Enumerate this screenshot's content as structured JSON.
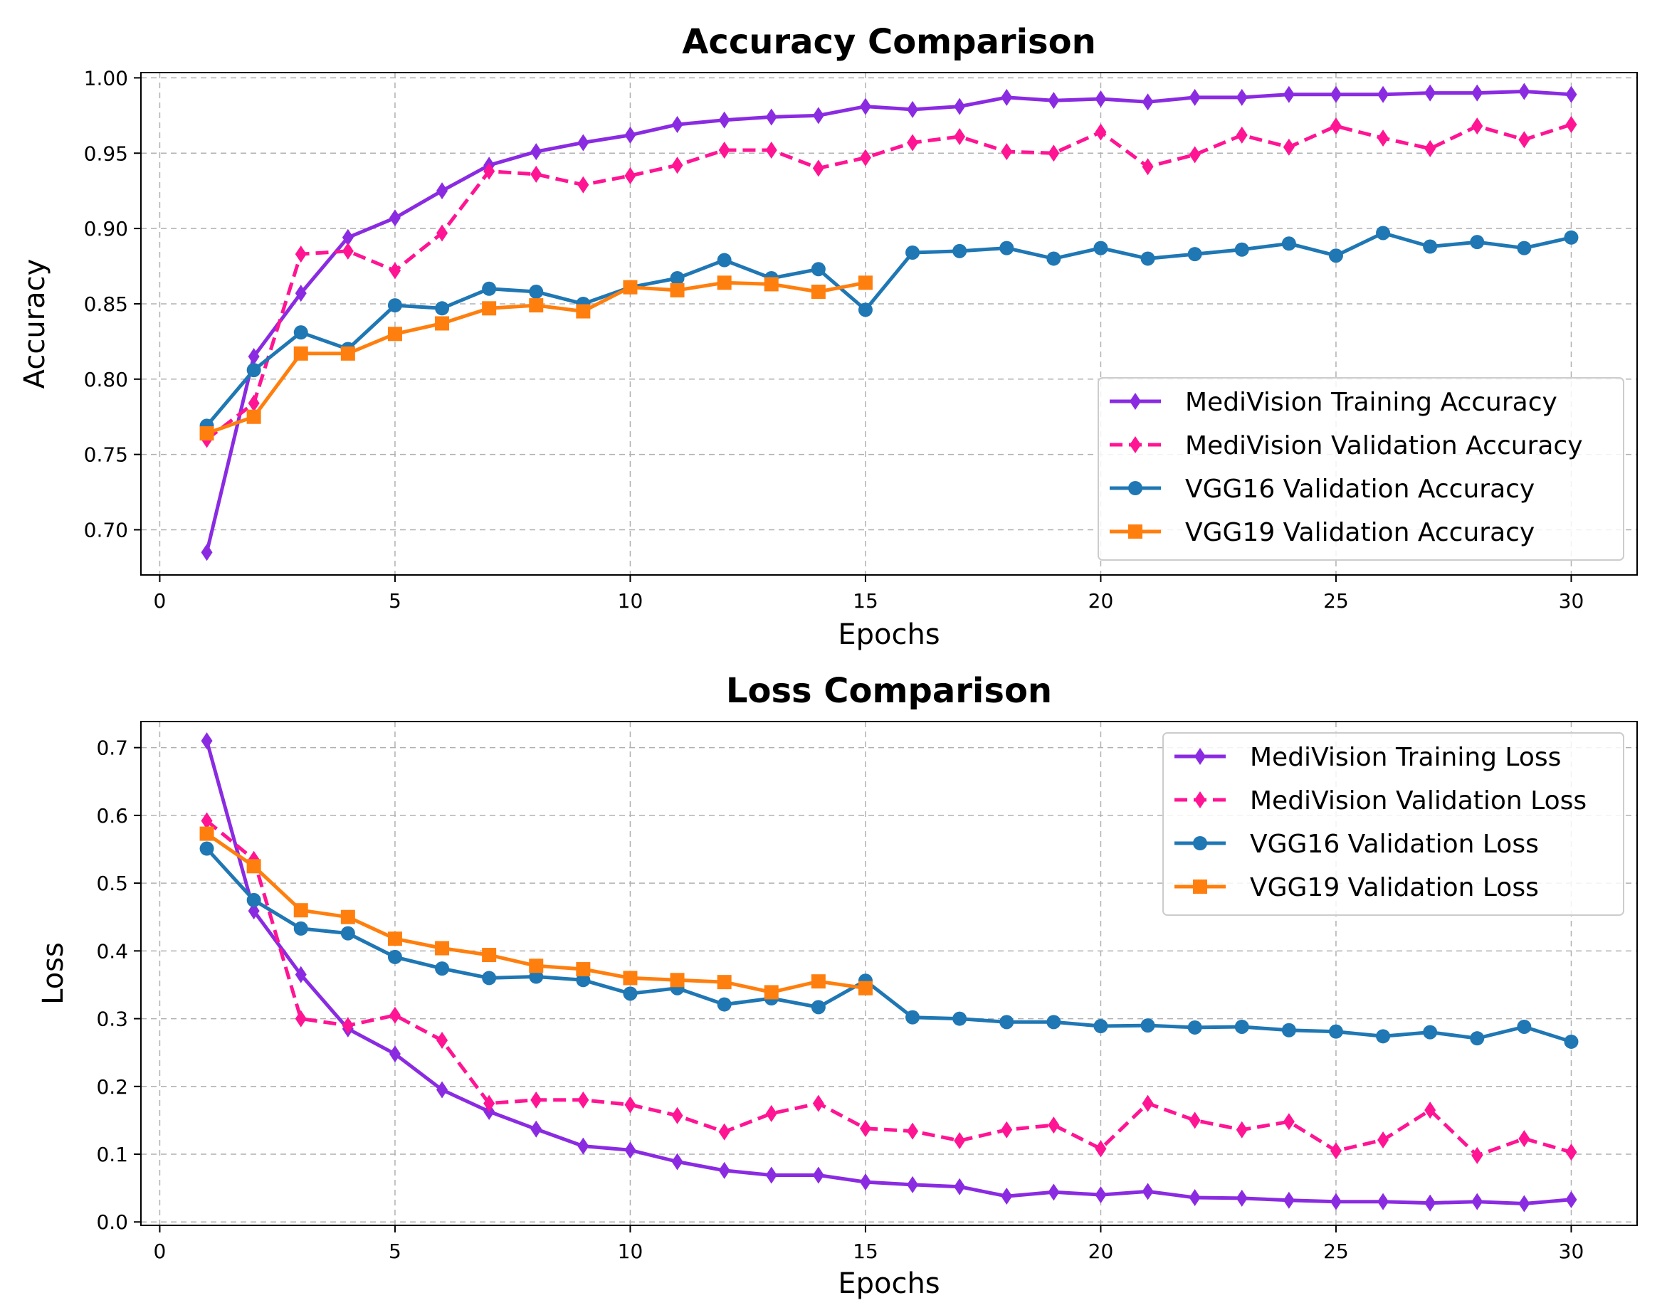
{
  "chart_data": [
    {
      "type": "line",
      "title": "Accuracy Comparison",
      "xlabel": "Epochs",
      "ylabel": "Accuracy",
      "xlim": [
        -0.4,
        31.4
      ],
      "ylim": [
        0.67,
        1.0035
      ],
      "xticks": [
        0,
        5,
        10,
        15,
        20,
        25,
        30
      ],
      "xtick_labels": [
        "0",
        "5",
        "10",
        "15",
        "20",
        "25",
        "30"
      ],
      "yticks": [
        0.7,
        0.75,
        0.8,
        0.85,
        0.9,
        0.95,
        1.0
      ],
      "ytick_labels": [
        "0.70",
        "0.75",
        "0.80",
        "0.85",
        "0.90",
        "0.95",
        "1.00"
      ],
      "grid": true,
      "legend_position": "lower-right",
      "series": [
        {
          "name": "MediVision Training Accuracy",
          "color": "#8a2be2",
          "dashed": false,
          "marker": "diamond",
          "x": [
            1,
            2,
            3,
            4,
            5,
            6,
            7,
            8,
            9,
            10,
            11,
            12,
            13,
            14,
            15,
            16,
            17,
            18,
            19,
            20,
            21,
            22,
            23,
            24,
            25,
            26,
            27,
            28,
            29,
            30
          ],
          "y": [
            0.685,
            0.815,
            0.857,
            0.894,
            0.907,
            0.925,
            0.942,
            0.951,
            0.957,
            0.962,
            0.969,
            0.972,
            0.974,
            0.975,
            0.981,
            0.979,
            0.981,
            0.987,
            0.985,
            0.986,
            0.984,
            0.987,
            0.987,
            0.989,
            0.989,
            0.989,
            0.99,
            0.99,
            0.991,
            0.989
          ]
        },
        {
          "name": "MediVision Validation Accuracy",
          "color": "#ff1493",
          "dashed": true,
          "marker": "diamond",
          "x": [
            1,
            2,
            3,
            4,
            5,
            6,
            7,
            8,
            9,
            10,
            11,
            12,
            13,
            14,
            15,
            16,
            17,
            18,
            19,
            20,
            21,
            22,
            23,
            24,
            25,
            26,
            27,
            28,
            29,
            30
          ],
          "y": [
            0.76,
            0.784,
            0.883,
            0.885,
            0.872,
            0.897,
            0.938,
            0.936,
            0.929,
            0.935,
            0.942,
            0.952,
            0.952,
            0.94,
            0.947,
            0.957,
            0.961,
            0.951,
            0.95,
            0.964,
            0.941,
            0.949,
            0.962,
            0.954,
            0.968,
            0.96,
            0.953,
            0.968,
            0.959,
            0.969
          ]
        },
        {
          "name": "VGG16 Validation Accuracy",
          "color": "#1f77b4",
          "dashed": false,
          "marker": "circle",
          "x": [
            1,
            2,
            3,
            4,
            5,
            6,
            7,
            8,
            9,
            10,
            11,
            12,
            13,
            14,
            15,
            16,
            17,
            18,
            19,
            20,
            21,
            22,
            23,
            24,
            25,
            26,
            27,
            28,
            29,
            30
          ],
          "y": [
            0.769,
            0.806,
            0.831,
            0.82,
            0.849,
            0.847,
            0.86,
            0.858,
            0.85,
            0.861,
            0.867,
            0.879,
            0.867,
            0.873,
            0.846,
            0.884,
            0.885,
            0.887,
            0.88,
            0.887,
            0.88,
            0.883,
            0.886,
            0.89,
            0.882,
            0.897,
            0.888,
            0.891,
            0.887,
            0.894
          ]
        },
        {
          "name": "VGG19 Validation Accuracy",
          "color": "#ff7f0e",
          "dashed": false,
          "marker": "square",
          "x": [
            1,
            2,
            3,
            4,
            5,
            6,
            7,
            8,
            9,
            10,
            11,
            12,
            13,
            14,
            15
          ],
          "y": [
            0.764,
            0.775,
            0.817,
            0.817,
            0.83,
            0.837,
            0.847,
            0.849,
            0.845,
            0.861,
            0.859,
            0.864,
            0.863,
            0.858,
            0.864
          ]
        }
      ]
    },
    {
      "type": "line",
      "title": "Loss Comparison",
      "xlabel": "Epochs",
      "ylabel": "Loss",
      "xlim": [
        -0.4,
        31.4
      ],
      "ylim": [
        -0.005,
        0.7385
      ],
      "xticks": [
        0,
        5,
        10,
        15,
        20,
        25,
        30
      ],
      "xtick_labels": [
        "0",
        "5",
        "10",
        "15",
        "20",
        "25",
        "30"
      ],
      "yticks": [
        0.0,
        0.1,
        0.2,
        0.3,
        0.4,
        0.5,
        0.6,
        0.7
      ],
      "ytick_labels": [
        "0.0",
        "0.1",
        "0.2",
        "0.3",
        "0.4",
        "0.5",
        "0.6",
        "0.7"
      ],
      "grid": true,
      "legend_position": "upper-right",
      "series": [
        {
          "name": "MediVision Training Loss",
          "color": "#8a2be2",
          "dashed": false,
          "marker": "diamond",
          "x": [
            1,
            2,
            3,
            4,
            5,
            6,
            7,
            8,
            9,
            10,
            11,
            12,
            13,
            14,
            15,
            16,
            17,
            18,
            19,
            20,
            21,
            22,
            23,
            24,
            25,
            26,
            27,
            28,
            29,
            30
          ],
          "y": [
            0.71,
            0.459,
            0.365,
            0.285,
            0.248,
            0.195,
            0.163,
            0.137,
            0.112,
            0.106,
            0.089,
            0.076,
            0.069,
            0.069,
            0.059,
            0.055,
            0.052,
            0.038,
            0.044,
            0.04,
            0.045,
            0.036,
            0.035,
            0.032,
            0.03,
            0.03,
            0.028,
            0.03,
            0.027,
            0.033
          ]
        },
        {
          "name": "MediVision Validation Loss",
          "color": "#ff1493",
          "dashed": true,
          "marker": "diamond",
          "x": [
            1,
            2,
            3,
            4,
            5,
            6,
            7,
            8,
            9,
            10,
            11,
            12,
            13,
            14,
            15,
            16,
            17,
            18,
            19,
            20,
            21,
            22,
            23,
            24,
            25,
            26,
            27,
            28,
            29,
            30
          ],
          "y": [
            0.592,
            0.535,
            0.3,
            0.29,
            0.305,
            0.268,
            0.175,
            0.18,
            0.18,
            0.173,
            0.157,
            0.133,
            0.16,
            0.175,
            0.138,
            0.134,
            0.12,
            0.136,
            0.143,
            0.108,
            0.175,
            0.15,
            0.136,
            0.148,
            0.105,
            0.121,
            0.165,
            0.098,
            0.123,
            0.103
          ]
        },
        {
          "name": "VGG16 Validation Loss",
          "color": "#1f77b4",
          "dashed": false,
          "marker": "circle",
          "x": [
            1,
            2,
            3,
            4,
            5,
            6,
            7,
            8,
            9,
            10,
            11,
            12,
            13,
            14,
            15,
            16,
            17,
            18,
            19,
            20,
            21,
            22,
            23,
            24,
            25,
            26,
            27,
            28,
            29,
            30
          ],
          "y": [
            0.551,
            0.475,
            0.433,
            0.426,
            0.391,
            0.374,
            0.36,
            0.362,
            0.357,
            0.337,
            0.345,
            0.321,
            0.33,
            0.317,
            0.356,
            0.302,
            0.3,
            0.295,
            0.295,
            0.289,
            0.29,
            0.287,
            0.288,
            0.283,
            0.281,
            0.274,
            0.28,
            0.271,
            0.288,
            0.266
          ]
        },
        {
          "name": "VGG19 Validation Loss",
          "color": "#ff7f0e",
          "dashed": false,
          "marker": "square",
          "x": [
            1,
            2,
            3,
            4,
            5,
            6,
            7,
            8,
            9,
            10,
            11,
            12,
            13,
            14,
            15
          ],
          "y": [
            0.573,
            0.525,
            0.46,
            0.45,
            0.418,
            0.404,
            0.394,
            0.378,
            0.373,
            0.36,
            0.357,
            0.354,
            0.339,
            0.355,
            0.345
          ]
        }
      ]
    }
  ]
}
